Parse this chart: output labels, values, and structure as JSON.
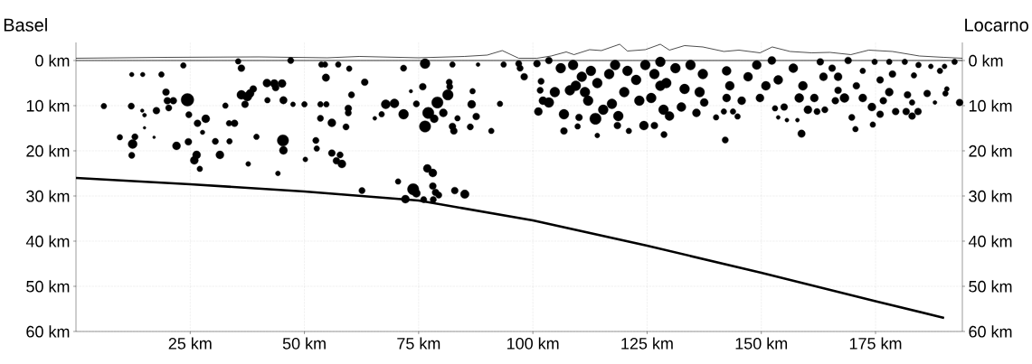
{
  "chart_data": {
    "type": "bubble",
    "xlim": [
      0,
      194
    ],
    "ylim": [
      60,
      -4
    ],
    "y2lim": [
      60,
      -4
    ],
    "grid": true,
    "xticks": [
      {
        "value": 25,
        "label": "25 km"
      },
      {
        "value": 50,
        "label": "50 km"
      },
      {
        "value": 75,
        "label": "75 km"
      },
      {
        "value": 100,
        "label": "100 km"
      },
      {
        "value": 125,
        "label": "125 km"
      },
      {
        "value": 150,
        "label": "150 km"
      },
      {
        "value": 175,
        "label": "175 km"
      }
    ],
    "yticks": [
      {
        "value": 0,
        "label": "0 km"
      },
      {
        "value": 10,
        "label": "10 km"
      },
      {
        "value": 20,
        "label": "20 km"
      },
      {
        "value": 30,
        "label": "30 km"
      },
      {
        "value": 40,
        "label": "40 km"
      },
      {
        "value": 50,
        "label": "50 km"
      },
      {
        "value": 60,
        "label": "60 km"
      }
    ],
    "y2ticks": [
      {
        "value": 0,
        "label": "0 km"
      },
      {
        "value": 10,
        "label": "10 km"
      },
      {
        "value": 20,
        "label": "20 km"
      },
      {
        "value": 30,
        "label": "30 km"
      },
      {
        "value": 40,
        "label": "40 km"
      },
      {
        "value": 50,
        "label": "50 km"
      },
      {
        "value": 60,
        "label": "60 km"
      }
    ],
    "ref_lines": [
      {
        "axis": "y",
        "value": 0,
        "color": "#000000"
      }
    ],
    "annotations": [
      "Basel",
      "Locarno"
    ],
    "series": [
      {
        "color": "#000000",
        "x": [
          6.1,
          12.2,
          14.6,
          18.7,
          12.1,
          14.5,
          15,
          17.6,
          19.7,
          20,
          20.3,
          21.3,
          24.4,
          23.5,
          24.7,
          26.6,
          28.4,
          27.7,
          32.7,
          33.5,
          34.7,
          15,
          9.6,
          12.9,
          12.4,
          12.2,
          17.1,
          22,
          24.6,
          26.4,
          25.9,
          27.1,
          30.5,
          31.5,
          33.6,
          37.7,
          39.5,
          45.3,
          45.4,
          44.2,
          50.2,
          52.5,
          52.7,
          56,
          57,
          57.8,
          58.2,
          35.5,
          36.2,
          47,
          53.7,
          54.5,
          57.4,
          54.7,
          41.8,
          43.4,
          45.1,
          43.7,
          36.2,
          37.5,
          38.8,
          37,
          38.1,
          41.9,
          45.4,
          47.5,
          50,
          53.5,
          54.8,
          53.5,
          56,
          59.8,
          63.2,
          60.3,
          59.6,
          59.6,
          59.1,
          71.7,
          76.4,
          82.4,
          88,
          93.6,
          96.9,
          97.2,
          98.1,
          100.9,
          103.5,
          75.9,
          81.7,
          81.8,
          73.3,
          86.8,
          81.4,
          79.1,
          67.8,
          69.7,
          71.7,
          66.9,
          65.4,
          74.5,
          77.1,
          76.4,
          78.4,
          80.4,
          83.5,
          82.4,
          82.7,
          86.6,
          87.6,
          86.3,
          90.9,
          92.8,
          62.6,
          70.5,
          73.8,
          74.5,
          72.1,
          76.1,
          76.9,
          78.1,
          78.1,
          78.7,
          78.2,
          79.4,
          82.9,
          85.1,
          101.8,
          101.6,
          102.2,
          101.2,
          106.8,
          106.8,
          109.8,
          110.1,
          113.7,
          114.1,
          118.5,
          121,
          124.3,
          126.6,
          128.7,
          106.1,
          108.8,
          110.7,
          112.7,
          109.4,
          111.4,
          114.1,
          116.7,
          118,
          120.7,
          122.6,
          124.6,
          126.6,
          127.9,
          125.9,
          128.6,
          117.3,
          118.7,
          115.4,
          112.1,
          108.1,
          104.8,
          103.5,
          123.3,
          120,
          127.9,
          131.2,
          134.5,
          137.2,
          129.2,
          133.2,
          136.5,
          132.5,
          135.8,
          129.9,
          142.1,
          137.5,
          140.1,
          141.8,
          143.8,
          144.8,
          142.4,
          145.7,
          143.1,
          147.1,
          142.4,
          149,
          152.3,
          149.7,
          151,
          153.7,
          155,
          153,
          153.7,
          155.6,
          157.9,
          157,
          159.1,
          160.2,
          162.2,
          163.9,
          158.8,
          158.3,
          161.6,
          163.6,
          165.5,
          162.9,
          169,
          166.8,
          168.2,
          166.8,
          166.2,
          169.8,
          170.6,
          170.8,
          172.2,
          172.2,
          174.2,
          174.4,
          176,
          176.7,
          174.8,
          176,
          178,
          178.7,
          178,
          179.4,
          181.4,
          182,
          183.4,
          181.7,
          183,
          184.3,
          183,
          186.3,
          184.4,
          187.1,
          189.1,
          190.1,
          192.3,
          190.6,
          190.3,
          188,
          193.4
        ],
        "values": [
          10.1,
          3.1,
          3.1,
          3.1,
          10.1,
          11.1,
          12.1,
          11.1,
          7,
          8.9,
          10.5,
          8.9,
          8.7,
          1.1,
          12,
          13.9,
          12.9,
          15.9,
          10,
          13.9,
          13.9,
          14.9,
          17,
          16.9,
          18.5,
          21,
          17,
          18.9,
          18,
          20.9,
          22.1,
          24,
          17.9,
          20.9,
          17.9,
          22.9,
          16.9,
          17.7,
          19.9,
          25,
          21.9,
          17.7,
          19.5,
          20.5,
          22.2,
          20.9,
          22.9,
          0.2,
          1.7,
          0,
          0.9,
          0.9,
          0.9,
          3.8,
          5,
          5.1,
          5.1,
          6,
          7.6,
          8,
          6.3,
          9.7,
          7.3,
          8.8,
          8.8,
          9.7,
          9.7,
          9.7,
          9.7,
          12.8,
          13.8,
          1.8,
          4.8,
          7.6,
          10.6,
          11.6,
          14.7,
          1.7,
          0.7,
          0.9,
          0.9,
          0.9,
          0.7,
          1.7,
          3.6,
          0.7,
          0,
          5.8,
          4.8,
          5.8,
          6.8,
          6.8,
          7.6,
          9.3,
          9.7,
          9.5,
          11.9,
          11.9,
          12.8,
          9.6,
          11.6,
          14.6,
          12.9,
          11.6,
          12.8,
          14.6,
          15.6,
          9.7,
          12.4,
          14.7,
          15.6,
          9.6,
          28.8,
          26.8,
          28.5,
          29.4,
          30.7,
          30.8,
          23.9,
          24.9,
          27.8,
          29.2,
          30.8,
          29.8,
          28.8,
          29.6,
          4.6,
          6.6,
          8.9,
          11.3,
          11.9,
          15.6,
          14.6,
          12.6,
          12.9,
          16.6,
          14.4,
          15.6,
          14.4,
          14.4,
          16.4,
          1.7,
          1,
          3.6,
          2.3,
          5.6,
          7,
          5,
          3,
          1,
          2.3,
          4.3,
          1,
          3,
          5.6,
          8.3,
          10.9,
          9.6,
          12.3,
          10.9,
          8.9,
          6.6,
          7,
          9.3,
          8.9,
          7,
          0.3,
          1.7,
          1,
          3,
          5,
          6.3,
          7,
          10.3,
          11.6,
          12.3,
          17.6,
          9.3,
          12.6,
          11.3,
          11.3,
          12.4,
          8.3,
          8.9,
          5.6,
          3.6,
          2.3,
          1,
          0,
          8.3,
          5.6,
          4.3,
          10.3,
          10.6,
          12.6,
          13.2,
          13.2,
          1.7,
          5.6,
          10.9,
          11.3,
          10.9,
          16.2,
          8.3,
          8.3,
          3.6,
          1.7,
          0.3,
          0,
          3.6,
          8.3,
          6.6,
          8.9,
          12.6,
          15.2,
          5.6,
          2.3,
          8.3,
          10.3,
          14.2,
          11.9,
          8.9,
          0.3,
          4.3,
          0.3,
          3,
          7,
          11.3,
          0.3,
          7.6,
          3.3,
          11.3,
          12.3,
          11.3,
          9.3,
          7.3,
          1,
          1.3,
          2.3,
          1.3,
          0.3,
          6.3,
          7.3,
          9.3,
          9.3
        ],
        "sizes": [
          0.2,
          0.13,
          0.13,
          0.2,
          0.25,
          0.08,
          0.1,
          0.3,
          0.3,
          0.3,
          0.25,
          0.3,
          1,
          0.2,
          0.25,
          0.3,
          0.4,
          0.13,
          0.2,
          0.2,
          0.3,
          0.05,
          0.2,
          0.25,
          0.5,
          0.25,
          0.05,
          0.4,
          0.3,
          0.4,
          0.4,
          0.2,
          0.25,
          0.4,
          0.2,
          0.15,
          0.2,
          0.8,
          0.4,
          0.15,
          0.15,
          0.25,
          0.2,
          0.3,
          0.3,
          0.25,
          0.4,
          0.2,
          0.3,
          0.25,
          0.2,
          0.2,
          0.2,
          0.35,
          0.4,
          0.4,
          0.4,
          0.3,
          0.5,
          0.5,
          0.3,
          0.3,
          0.4,
          0.2,
          0.35,
          0.15,
          0.2,
          0.2,
          0.2,
          0.25,
          0.4,
          0.2,
          0.3,
          0.25,
          0.3,
          0.25,
          0.25,
          0.25,
          0.6,
          0.2,
          0.1,
          0.2,
          0.25,
          0.25,
          0.3,
          0.3,
          0.3,
          0.3,
          0.25,
          0.25,
          0.08,
          0.2,
          0.7,
          0.8,
          0.5,
          0.5,
          0.6,
          0.2,
          0.1,
          0.25,
          0.8,
          0.8,
          0.4,
          0.4,
          0.2,
          0.3,
          0.3,
          0.4,
          0.3,
          0.25,
          0.2,
          0.2,
          0.25,
          0.2,
          0.8,
          0.4,
          0.4,
          0.25,
          0.4,
          0.4,
          0.3,
          0.3,
          0.25,
          0.25,
          0.3,
          0.45,
          0.25,
          0.25,
          0.4,
          0.4,
          0.6,
          0.3,
          0.2,
          0.3,
          0.8,
          0.15,
          0.3,
          0.2,
          0.5,
          0.3,
          0.25,
          0.6,
          0.6,
          0.6,
          0.6,
          0.6,
          0.6,
          0.6,
          0.6,
          0.6,
          0.6,
          0.6,
          0.6,
          0.6,
          0.6,
          0.6,
          0.6,
          0.6,
          0.6,
          0.6,
          0.6,
          0.6,
          0.6,
          0.6,
          0.6,
          0.6,
          0.6,
          0.6,
          0.6,
          0.6,
          0.6,
          0.6,
          0.6,
          0.5,
          0.4,
          0.5,
          0.25,
          0.4,
          0.2,
          0.2,
          0.2,
          0.2,
          0.4,
          0.4,
          0.5,
          0.5,
          0.5,
          0.5,
          0.4,
          0.4,
          0.5,
          0.5,
          0.3,
          0.2,
          0.1,
          0.1,
          0.1,
          0.5,
          0.5,
          0.4,
          0.25,
          0.25,
          0.35,
          0.5,
          0.4,
          0.4,
          0.3,
          0.3,
          0.3,
          0.4,
          0.5,
          0.3,
          0.3,
          0.25,
          0.2,
          0.3,
          0.2,
          0.4,
          0.4,
          0.2,
          0.3,
          0.3,
          0.2,
          0.3,
          0.2,
          0.3,
          0.4,
          0.3,
          0.2,
          0.3,
          0.2,
          0.3,
          0.3,
          0.3,
          0.2,
          0.3,
          0.2,
          0.15,
          0.2,
          0.15,
          0.2,
          0.15,
          0.2,
          0.1,
          0.3
        ]
      },
      {
        "type": "line",
        "color": "#000000",
        "x": [
          0,
          20,
          40,
          55,
          62,
          75,
          85,
          90,
          93.3,
          96.9,
          100.9,
          104,
          107.3,
          109,
          112.4,
          115,
          119,
          120.7,
          124.6,
          127.9,
          129.9,
          133.2,
          137.2,
          141.8,
          145.1,
          149.7,
          152.4,
          156.3,
          161,
          165,
          169.6,
          173.5,
          178.7,
          184.6,
          190,
          194
        ],
        "values": [
          -0.5,
          -0.7,
          -0.8,
          -0.6,
          -0.9,
          -0.6,
          -0.9,
          -1.2,
          -2.2,
          -0.5,
          -0.5,
          -1,
          -1.9,
          -1.3,
          -2.4,
          -2.2,
          -3.6,
          -2.1,
          -2.4,
          -3.6,
          -2.3,
          -3.3,
          -3,
          -2,
          -2.3,
          -1.7,
          -3,
          -2,
          -1.7,
          -1.8,
          -1.3,
          -2.3,
          -2,
          -1,
          -0.7,
          -0.5
        ]
      },
      {
        "type": "line",
        "color": "#000000",
        "x": [
          0,
          25,
          50,
          75,
          100,
          125,
          150,
          175,
          190
        ],
        "values": [
          26,
          27.4,
          29,
          31,
          35.4,
          41,
          47,
          53.3,
          57
        ]
      }
    ]
  }
}
